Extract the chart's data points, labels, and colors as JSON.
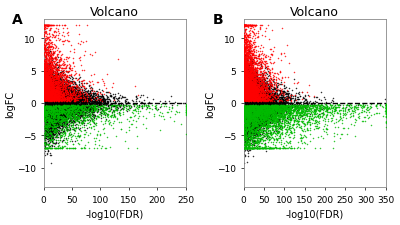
{
  "panel_A": {
    "label": "A",
    "title": "Volcano",
    "xlabel": "-log10(FDR)",
    "ylabel": "logFC",
    "xlim": [
      0,
      250
    ],
    "ylim": [
      -13,
      13
    ],
    "xticks": [
      0,
      50,
      100,
      150,
      200,
      250
    ],
    "yticks": [
      -10,
      -5,
      0,
      5,
      10
    ],
    "n_black": 8000,
    "n_red": 3000,
    "n_green": 1800,
    "seed": 42,
    "x_scale": 30,
    "red_x_scale": 18,
    "green_x_scale": 55,
    "red_yfc_mean": 2.5,
    "red_yfc_std": 2.0,
    "green_yfc_mean": -2.0,
    "green_yfc_std": 1.5
  },
  "panel_B": {
    "label": "B",
    "title": "Volcano",
    "xlabel": "-log10(FDR)",
    "ylabel": "logFC",
    "xlim": [
      0,
      350
    ],
    "ylim": [
      -13,
      13
    ],
    "xticks": [
      0,
      50,
      100,
      150,
      200,
      250,
      300,
      350
    ],
    "yticks": [
      -10,
      -5,
      0,
      5,
      10
    ],
    "n_black": 8000,
    "n_red": 4000,
    "n_green": 4000,
    "seed": 99,
    "x_scale": 30,
    "red_x_scale": 20,
    "green_x_scale": 80,
    "red_yfc_mean": 2.5,
    "red_yfc_std": 2.0,
    "green_yfc_mean": -2.2,
    "green_yfc_std": 1.5
  },
  "dot_size": 1.2,
  "alpha": 0.8,
  "black_color": "#000000",
  "red_color": "#FF0000",
  "green_color": "#00BB00",
  "bg_color": "#FFFFFF",
  "panel_label_fontsize": 10,
  "title_fontsize": 9,
  "axis_label_fontsize": 7,
  "tick_fontsize": 6.5
}
